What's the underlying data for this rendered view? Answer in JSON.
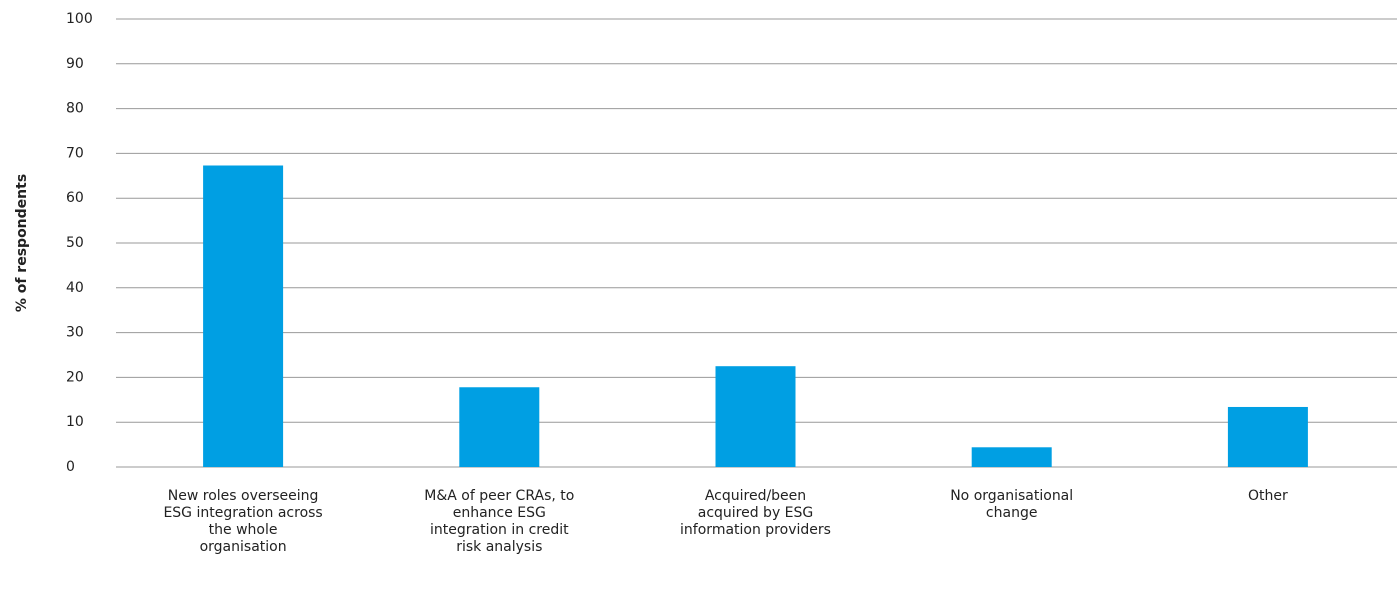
{
  "chart_data": {
    "type": "bar",
    "y_axis_label": "% of respondents",
    "categories": [
      "New roles overseeing ESG integration across the whole organisation",
      "M&A of peer CRAs, to enhance ESG integration in credit risk analysis",
      "Acquired/been acquired by ESG information providers",
      "No organisational change",
      "Other"
    ],
    "values": [
      67.3,
      17.8,
      22.5,
      4.4,
      13.4
    ],
    "color": "#009fe3",
    "ylim": [
      0,
      100
    ],
    "yticks": [
      0,
      10,
      20,
      30,
      40,
      50,
      60,
      70,
      80,
      90,
      100
    ],
    "grid": true
  }
}
